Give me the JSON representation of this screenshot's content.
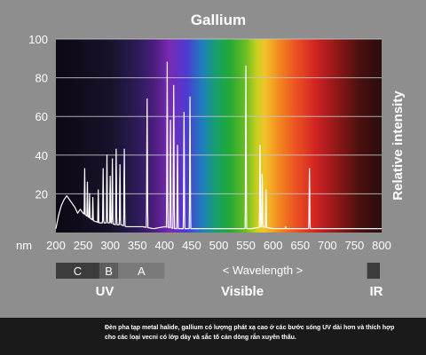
{
  "chart_data": {
    "type": "line",
    "title": "Gallium",
    "ylabel": "Relative intensity",
    "x_unit": "nm",
    "xlim": [
      200,
      800
    ],
    "ylim": [
      0,
      100
    ],
    "x_ticks": [
      200,
      250,
      300,
      350,
      400,
      450,
      500,
      550,
      600,
      650,
      700,
      750,
      800
    ],
    "y_ticks": [
      20,
      40,
      60,
      80,
      100
    ],
    "grid": true,
    "line_color": "#ffffff",
    "baseline": [
      [
        200,
        2
      ],
      [
        205,
        9
      ],
      [
        210,
        14
      ],
      [
        215,
        17
      ],
      [
        220,
        19
      ],
      [
        225,
        17
      ],
      [
        230,
        15
      ],
      [
        235,
        13
      ],
      [
        240,
        10
      ],
      [
        245,
        12
      ],
      [
        250,
        10
      ],
      [
        255,
        9
      ],
      [
        260,
        8
      ],
      [
        265,
        7
      ],
      [
        270,
        6
      ],
      [
        280,
        5
      ],
      [
        290,
        5
      ],
      [
        300,
        5
      ],
      [
        310,
        4
      ],
      [
        320,
        4
      ],
      [
        330,
        3
      ],
      [
        340,
        3
      ],
      [
        350,
        3
      ],
      [
        360,
        3
      ],
      [
        380,
        2
      ],
      [
        400,
        3
      ],
      [
        420,
        2
      ],
      [
        440,
        2
      ],
      [
        460,
        2
      ],
      [
        480,
        2
      ],
      [
        500,
        2
      ],
      [
        520,
        2
      ],
      [
        540,
        2
      ],
      [
        560,
        2
      ],
      [
        580,
        3
      ],
      [
        600,
        2
      ],
      [
        620,
        2
      ],
      [
        640,
        2
      ],
      [
        660,
        2
      ],
      [
        680,
        2
      ],
      [
        700,
        2
      ],
      [
        720,
        2
      ],
      [
        740,
        2
      ],
      [
        760,
        2
      ],
      [
        780,
        2
      ],
      [
        800,
        2
      ]
    ],
    "peaks": [
      [
        253,
        33
      ],
      [
        258,
        26
      ],
      [
        262,
        20
      ],
      [
        268,
        18
      ],
      [
        278,
        22
      ],
      [
        287,
        33
      ],
      [
        294,
        40
      ],
      [
        300,
        29
      ],
      [
        304,
        38
      ],
      [
        311,
        43
      ],
      [
        318,
        35
      ],
      [
        326,
        43
      ],
      [
        368,
        69
      ],
      [
        405,
        88
      ],
      [
        411,
        58
      ],
      [
        417,
        76
      ],
      [
        424,
        45
      ],
      [
        436,
        62
      ],
      [
        447,
        70
      ],
      [
        550,
        86
      ],
      [
        576,
        45
      ],
      [
        580,
        30
      ],
      [
        587,
        22
      ],
      [
        623,
        3
      ],
      [
        667,
        33
      ]
    ],
    "spectrum_colors": [
      [
        200,
        "#0c0813"
      ],
      [
        300,
        "#17122a"
      ],
      [
        350,
        "#2c1b58"
      ],
      [
        380,
        "#4a1e7d"
      ],
      [
        410,
        "#7a2ab5"
      ],
      [
        440,
        "#4d3ad0"
      ],
      [
        470,
        "#1f7fbf"
      ],
      [
        495,
        "#15a06a"
      ],
      [
        520,
        "#22a836"
      ],
      [
        550,
        "#6cbd22"
      ],
      [
        570,
        "#c9d01f"
      ],
      [
        585,
        "#f1c22a"
      ],
      [
        610,
        "#f28a1e"
      ],
      [
        640,
        "#ed5422"
      ],
      [
        680,
        "#cf2222"
      ],
      [
        720,
        "#8c1717"
      ],
      [
        760,
        "#4a1010"
      ],
      [
        800,
        "#2a0d0d"
      ]
    ]
  },
  "bands": {
    "uv_segments": [
      {
        "letter": "C",
        "x_start": 200,
        "x_end": 280,
        "color": "#3c3c3c"
      },
      {
        "letter": "B",
        "x_start": 280,
        "x_end": 315,
        "color": "#5e5e5e"
      },
      {
        "letter": "A",
        "x_start": 315,
        "x_end": 400,
        "color": "#7a7a7a"
      }
    ],
    "ir_segment": {
      "x_start": 770,
      "x_end": 800,
      "color": "#3c3c3c"
    },
    "wavelength_label": "<   Wavelength   >",
    "uv_label": "UV",
    "visible_label": "Visible",
    "ir_label": "IR"
  },
  "caption": "Đèn pha tạp metal halide, gallium có lượng phát xạ cao ở các bước sóng UV dài hơn và thích hợp cho các loại vecni có lớp dày và sắc tố cản dòng rắn xuyên thấu."
}
